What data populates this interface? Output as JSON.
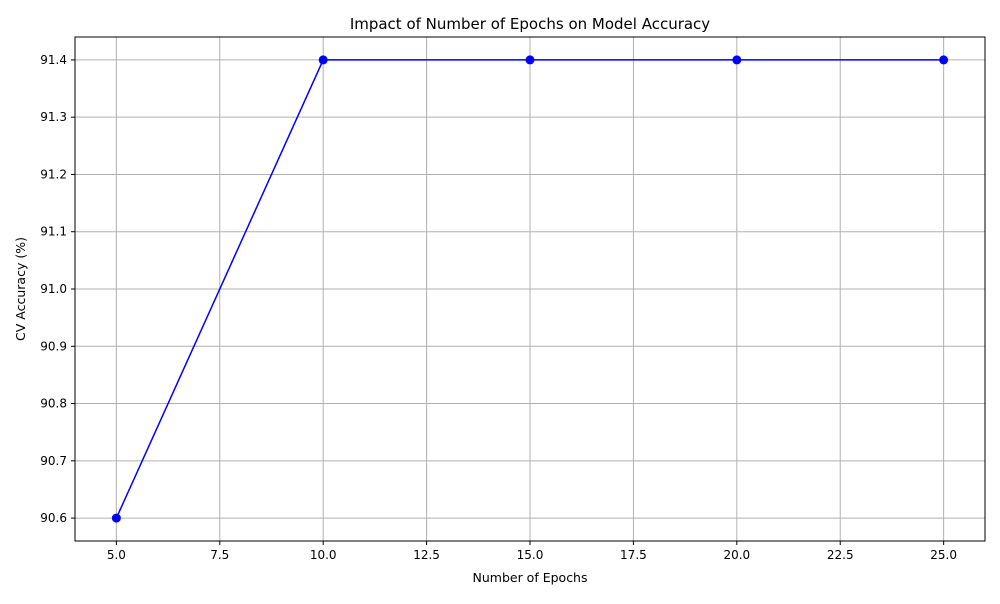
{
  "chart_data": {
    "type": "line",
    "title": "Impact of Number of Epochs on Model Accuracy",
    "xlabel": "Number of Epochs",
    "ylabel": "CV Accuracy (%)",
    "x": [
      5,
      10,
      15,
      20,
      25
    ],
    "series": [
      {
        "values": [
          90.6,
          91.4,
          91.4,
          91.4,
          91.4
        ]
      }
    ],
    "xlim": [
      4.0,
      26.0
    ],
    "ylim": [
      90.56,
      91.44
    ],
    "xticks": [
      "5.0",
      "7.5",
      "10.0",
      "12.5",
      "15.0",
      "17.5",
      "20.0",
      "22.5",
      "25.0"
    ],
    "yticks": [
      "90.6",
      "90.7",
      "90.8",
      "90.9",
      "91.0",
      "91.1",
      "91.2",
      "91.3",
      "91.4"
    ],
    "grid": true,
    "line_color": "#0000ff",
    "marker": "circle",
    "grid_color": "#b0b0b0"
  }
}
